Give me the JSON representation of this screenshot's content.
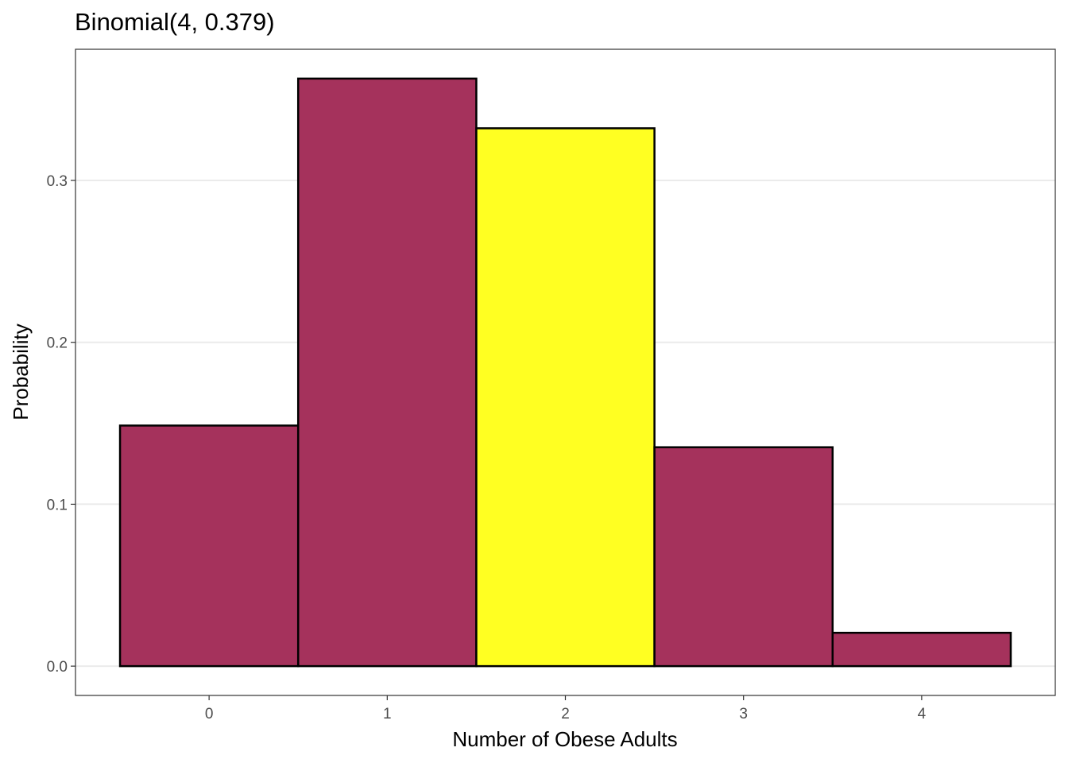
{
  "chart_data": {
    "type": "bar",
    "title": "Binomial(4, 0.379)",
    "xlabel": "Number of Obese Adults",
    "ylabel": "Probability",
    "categories": [
      "0",
      "1",
      "2",
      "3",
      "4"
    ],
    "x": [
      0,
      1,
      2,
      3,
      4
    ],
    "values": [
      0.1486,
      0.3629,
      0.3322,
      0.1352,
      0.0206
    ],
    "highlight_category": "2",
    "xlim": [
      -0.75,
      4.75
    ],
    "ylim": [
      -0.0181,
      0.381
    ],
    "yticks": [
      0.0,
      0.1,
      0.2,
      0.3
    ],
    "ytick_labels": [
      "0.0",
      "0.1",
      "0.2",
      "0.3"
    ],
    "xtick_labels": [
      "0",
      "1",
      "2",
      "3",
      "4"
    ],
    "grid": "horizontal major",
    "legend": "none",
    "colors": {
      "bar_fill": "#a5325c",
      "highlight_fill": "#ffff22",
      "bar_outline": "#000000",
      "grid": "#ebebeb",
      "panel_border": "#333333"
    }
  }
}
